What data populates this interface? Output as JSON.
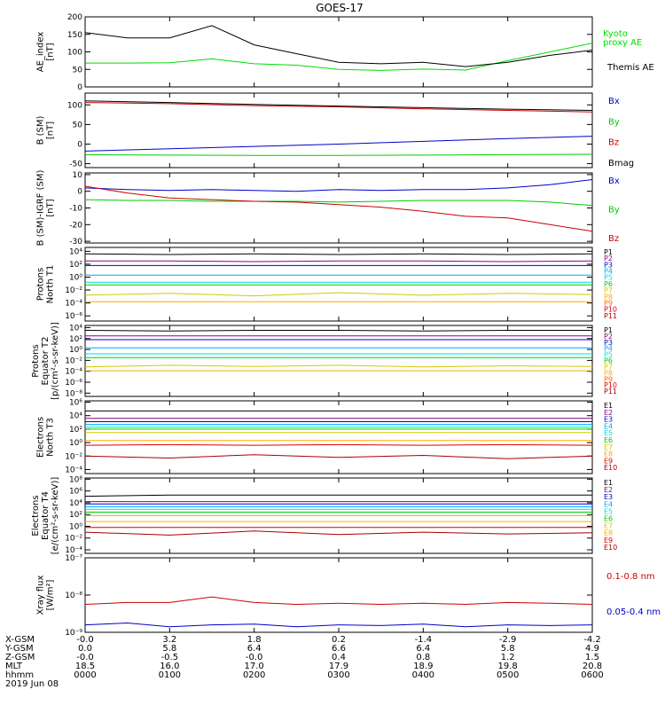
{
  "figure": {
    "title": "GOES-17",
    "date_label": "2019 Jun 08"
  },
  "chart_data": [
    {
      "id": "ae",
      "type": "line",
      "ylabel": [
        "AE_index",
        "[nT]"
      ],
      "yscale": "linear",
      "ylim": [
        0,
        200
      ],
      "yticks": [
        0,
        50,
        100,
        150,
        200
      ],
      "ytick_labels": [
        "0",
        "50",
        "100",
        "150",
        "200"
      ],
      "x": [
        0,
        30,
        60,
        90,
        120,
        150,
        180,
        210,
        240,
        270,
        300,
        330,
        360
      ],
      "series": [
        {
          "name": "Kyoto proxy AE",
          "legend_lines": [
            "Kyoto",
            "proxy AE"
          ],
          "color": "#00dd00",
          "values": [
            68,
            68,
            69,
            80,
            66,
            62,
            50,
            47,
            51,
            48,
            75,
            100,
            125
          ]
        },
        {
          "name": "Themis AE",
          "legend_lines": [
            "Themis AE"
          ],
          "color": "#000000",
          "values": [
            155,
            140,
            140,
            175,
            120,
            95,
            70,
            66,
            70,
            58,
            70,
            90,
            105
          ]
        }
      ]
    },
    {
      "id": "bsm",
      "type": "line",
      "ylabel": [
        "B (SM)",
        "[nT]"
      ],
      "yscale": "linear",
      "ylim": [
        -60,
        130
      ],
      "yticks": [
        -50,
        0,
        50,
        100
      ],
      "ytick_labels": [
        "-50",
        "0",
        "50",
        "100"
      ],
      "x": [
        0,
        60,
        120,
        180,
        240,
        300,
        360
      ],
      "series": [
        {
          "name": "Bx",
          "color": "#0000cc",
          "values": [
            -18,
            -12,
            -6,
            0,
            7,
            14,
            20
          ]
        },
        {
          "name": "By",
          "color": "#00cc00",
          "values": [
            -27,
            -28,
            -29,
            -29,
            -28,
            -27,
            -26
          ]
        },
        {
          "name": "Bz",
          "color": "#cc0000",
          "values": [
            106,
            103,
            98,
            95,
            90,
            86,
            82
          ]
        },
        {
          "name": "Bmag",
          "color": "#000000",
          "values": [
            110,
            106,
            101,
            97,
            93,
            89,
            86
          ]
        }
      ]
    },
    {
      "id": "bsmigrf",
      "type": "line",
      "ylabel": [
        "B (SM)-IGRF (SM)",
        "[nT]"
      ],
      "yscale": "linear",
      "ylim": [
        -31,
        11
      ],
      "yticks": [
        -30,
        -20,
        -10,
        0,
        10
      ],
      "ytick_labels": [
        "-30",
        "-20",
        "-10",
        "0",
        "10"
      ],
      "x": [
        0,
        30,
        60,
        90,
        120,
        150,
        180,
        210,
        240,
        270,
        300,
        330,
        360
      ],
      "series": [
        {
          "name": "Bx",
          "color": "#0000cc",
          "values": [
            2,
            1,
            0.5,
            1,
            0.5,
            0,
            1,
            0.5,
            1,
            1,
            2,
            4,
            7
          ]
        },
        {
          "name": "By",
          "color": "#00cc00",
          "values": [
            -5,
            -5.5,
            -5.5,
            -6,
            -6,
            -6,
            -6.5,
            -6,
            -5.5,
            -5.5,
            -5.5,
            -6.5,
            -8.5
          ]
        },
        {
          "name": "Bz",
          "color": "#cc0000",
          "values": [
            3,
            -1,
            -4,
            -5,
            -6,
            -6.5,
            -8,
            -9.5,
            -12,
            -15,
            -16,
            -20,
            -24
          ]
        }
      ]
    },
    {
      "id": "protons_north",
      "type": "line",
      "ylabel": [
        "Protons",
        "North T1"
      ],
      "yscale": "log",
      "ylim_exp": [
        -6.8,
        4.6
      ],
      "ytick_exps": [
        -6,
        -4,
        -2,
        0,
        2,
        4
      ],
      "ytick_labels": [
        "10⁻⁶",
        "10⁻⁴",
        "10⁻²",
        "10⁰",
        "10²",
        "10⁴"
      ],
      "x": [
        0,
        60,
        120,
        180,
        240,
        300,
        360
      ],
      "series": [
        {
          "name": "P1",
          "color": "#000000",
          "values_exp": [
            3.6,
            3.5,
            3.6,
            3.5,
            3.6,
            3.5,
            3.6
          ]
        },
        {
          "name": "P2",
          "color": "#880088",
          "values_exp": [
            2.5,
            2.5,
            2.4,
            2.5,
            2.5,
            2.4,
            2.5
          ]
        },
        {
          "name": "P3",
          "color": "#0000cc",
          "values_exp": [
            1.8,
            1.8,
            1.8,
            1.8,
            1.8,
            1.8,
            1.8
          ]
        },
        {
          "name": "P4",
          "color": "#00aaee",
          "values_exp": [
            0.3,
            0.3,
            0.3,
            0.3,
            0.3,
            0.3,
            0.3
          ]
        },
        {
          "name": "P5",
          "color": "#00dddd",
          "values_exp": [
            -0.8,
            -0.8,
            -0.8,
            -0.8,
            -0.8,
            -0.8,
            -0.8
          ]
        },
        {
          "name": "P6",
          "color": "#00cc00",
          "values_exp": [
            -1.2,
            -1.2,
            -1.2,
            -1.2,
            -1.2,
            -1.2,
            -1.2
          ]
        },
        {
          "name": "P7",
          "color": "#cccc00",
          "values_exp": [
            -2.8,
            -2.5,
            -2.9,
            -2.4,
            -2.8,
            -2.5,
            -2.7
          ]
        },
        {
          "name": "P8",
          "color": "#ffaa00",
          "values_exp": [
            -3.8,
            -3.8,
            -3.8,
            -3.8,
            -3.8,
            -3.8,
            -3.8
          ]
        },
        {
          "name": "P9",
          "color": "#ff6600",
          "values_exp": [
            null,
            null,
            null,
            null,
            null,
            null,
            null
          ]
        },
        {
          "name": "P10",
          "color": "#dd0000",
          "values_exp": [
            null,
            null,
            null,
            null,
            null,
            null,
            null
          ]
        },
        {
          "name": "P11",
          "color": "#aa0000",
          "values_exp": [
            null,
            null,
            null,
            null,
            null,
            null,
            null
          ]
        }
      ]
    },
    {
      "id": "protons_equator",
      "type": "line",
      "ylabel": [
        "Protons",
        "Equator T2",
        "[p/(cm²-s-sr-keV)]"
      ],
      "yscale": "log",
      "ylim_exp": [
        -8.6,
        4.4
      ],
      "ytick_exps": [
        -8,
        -6,
        -4,
        -2,
        0,
        2,
        4
      ],
      "ytick_labels": [
        "10⁻⁸",
        "10⁻⁶",
        "10⁻⁴",
        "10⁻²",
        "10⁰",
        "10²",
        "10⁴"
      ],
      "x": [
        0,
        60,
        120,
        180,
        240,
        300,
        360
      ],
      "series": [
        {
          "name": "P1",
          "color": "#000000",
          "values_exp": [
            3.5,
            3.4,
            3.5,
            3.5,
            3.4,
            3.5,
            3.5
          ]
        },
        {
          "name": "P2",
          "color": "#880088",
          "values_exp": [
            2.5,
            2.5,
            2.5,
            2.5,
            2.5,
            2.5,
            2.5
          ]
        },
        {
          "name": "P3",
          "color": "#0000cc",
          "values_exp": [
            1.8,
            1.8,
            1.8,
            1.8,
            1.8,
            1.8,
            1.8
          ]
        },
        {
          "name": "P4",
          "color": "#00aaee",
          "values_exp": [
            0.3,
            0.3,
            0.3,
            0.3,
            0.3,
            0.3,
            0.3
          ]
        },
        {
          "name": "P5",
          "color": "#00dddd",
          "values_exp": [
            -0.8,
            -0.8,
            -0.8,
            -0.8,
            -0.8,
            -0.8,
            -0.8
          ]
        },
        {
          "name": "P6",
          "color": "#00cc00",
          "values_exp": [
            -1.5,
            -1.5,
            -1.5,
            -1.5,
            -1.5,
            -1.5,
            -1.5
          ]
        },
        {
          "name": "P7",
          "color": "#cccc00",
          "values_exp": [
            -3.2,
            -2.9,
            -3.1,
            -2.9,
            -3.2,
            -3.0,
            -3.1
          ]
        },
        {
          "name": "P8",
          "color": "#ffaa00",
          "values_exp": [
            -3.9,
            -3.9,
            -3.9,
            -3.9,
            -3.9,
            -3.9,
            -3.9
          ]
        },
        {
          "name": "P9",
          "color": "#ff6600",
          "values_exp": [
            null,
            null,
            null,
            null,
            null,
            null,
            null
          ]
        },
        {
          "name": "P10",
          "color": "#dd0000",
          "values_exp": [
            null,
            null,
            null,
            null,
            null,
            null,
            null
          ]
        },
        {
          "name": "P11",
          "color": "#aa0000",
          "values_exp": [
            null,
            null,
            null,
            null,
            null,
            null,
            null
          ]
        }
      ]
    },
    {
      "id": "electrons_north",
      "type": "line",
      "ylabel": [
        "Electrons",
        "North T3"
      ],
      "yscale": "log",
      "ylim_exp": [
        -4.6,
        6.2
      ],
      "ytick_exps": [
        -4,
        -2,
        0,
        2,
        4,
        6
      ],
      "ytick_labels": [
        "10⁻⁴",
        "10⁻²",
        "10⁰",
        "10²",
        "10⁴",
        "10⁶"
      ],
      "x": [
        0,
        60,
        120,
        180,
        240,
        300,
        360
      ],
      "series": [
        {
          "name": "E1",
          "color": "#000000",
          "values_exp": [
            4.7,
            4.7,
            4.7,
            4.7,
            4.7,
            4.7,
            4.7
          ]
        },
        {
          "name": "E2",
          "color": "#880088",
          "values_exp": [
            3.6,
            3.6,
            3.6,
            3.6,
            3.6,
            3.6,
            3.6
          ]
        },
        {
          "name": "E3",
          "color": "#0000cc",
          "values_exp": [
            3.1,
            3.1,
            3.1,
            3.1,
            3.1,
            3.1,
            3.1
          ]
        },
        {
          "name": "E4",
          "color": "#00aaee",
          "values_exp": [
            2.7,
            2.7,
            2.7,
            2.7,
            2.7,
            2.7,
            2.7
          ]
        },
        {
          "name": "E5",
          "color": "#00dddd",
          "values_exp": [
            2.3,
            2.3,
            2.3,
            2.3,
            2.3,
            2.3,
            2.3
          ]
        },
        {
          "name": "E6",
          "color": "#00cc00",
          "values_exp": [
            2.0,
            2.0,
            2.0,
            2.0,
            2.0,
            2.0,
            2.0
          ]
        },
        {
          "name": "E7",
          "color": "#cccc00",
          "values_exp": [
            1.5,
            1.5,
            1.5,
            1.5,
            1.5,
            1.5,
            1.5
          ]
        },
        {
          "name": "E8",
          "color": "#ffaa00",
          "values_exp": [
            0.3,
            0.3,
            0.3,
            0.3,
            0.3,
            0.3,
            0.3
          ]
        },
        {
          "name": "E9",
          "color": "#dd0000",
          "values_exp": [
            -0.4,
            -0.3,
            -0.4,
            -0.3,
            -0.4,
            -0.3,
            -0.4
          ]
        },
        {
          "name": "E10",
          "color": "#aa0000",
          "values_exp": [
            -2.0,
            -2.3,
            -1.8,
            -2.2,
            -1.9,
            -2.4,
            -2.0
          ]
        }
      ]
    },
    {
      "id": "electrons_equator",
      "type": "line",
      "ylabel": [
        "Electrons",
        "Equator T4",
        "[e/(cm²-s-sr-keV)]"
      ],
      "yscale": "log",
      "ylim_exp": [
        -4.6,
        8.2
      ],
      "ytick_exps": [
        -4,
        -2,
        0,
        2,
        4,
        6,
        8
      ],
      "ytick_labels": [
        "10⁻⁴",
        "10⁻²",
        "10⁰",
        "10²",
        "10⁴",
        "10⁶",
        "10⁸"
      ],
      "x": [
        0,
        60,
        120,
        180,
        240,
        300,
        360
      ],
      "series": [
        {
          "name": "E1",
          "color": "#000000",
          "values_exp": [
            5.1,
            5.3,
            5.3,
            5.3,
            5.3,
            5.3,
            5.3
          ]
        },
        {
          "name": "E2",
          "color": "#880088",
          "values_exp": [
            4.2,
            4.2,
            4.2,
            4.2,
            4.2,
            4.2,
            4.2
          ]
        },
        {
          "name": "E3",
          "color": "#0000cc",
          "values_exp": [
            3.8,
            3.8,
            3.8,
            3.8,
            3.8,
            3.8,
            3.8
          ]
        },
        {
          "name": "E4",
          "color": "#00aaee",
          "values_exp": [
            3.3,
            3.3,
            3.3,
            3.3,
            3.3,
            3.3,
            3.3
          ]
        },
        {
          "name": "E5",
          "color": "#00dddd",
          "values_exp": [
            2.9,
            2.9,
            2.9,
            2.9,
            2.9,
            2.9,
            2.9
          ]
        },
        {
          "name": "E6",
          "color": "#00cc00",
          "values_exp": [
            2.4,
            2.4,
            2.4,
            2.4,
            2.4,
            2.4,
            2.4
          ]
        },
        {
          "name": "E7",
          "color": "#cccc00",
          "values_exp": [
            1.8,
            1.8,
            1.8,
            1.8,
            1.8,
            1.8,
            1.8
          ]
        },
        {
          "name": "E8",
          "color": "#ffaa00",
          "values_exp": [
            0.8,
            0.8,
            0.8,
            0.8,
            0.8,
            0.8,
            0.8
          ]
        },
        {
          "name": "E9",
          "color": "#dd0000",
          "values_exp": [
            -0.2,
            -0.2,
            -0.2,
            -0.2,
            -0.2,
            -0.2,
            -0.2
          ]
        },
        {
          "name": "E10",
          "color": "#aa0000",
          "values_exp": [
            -1.0,
            -1.5,
            -0.8,
            -1.4,
            -1.0,
            -1.3,
            -1.1
          ]
        }
      ]
    },
    {
      "id": "xray",
      "type": "line",
      "ylabel": [
        "Xray flux",
        "[W/m²]"
      ],
      "yscale": "log",
      "ylim_exp": [
        -9,
        -7
      ],
      "ytick_exps": [
        -9,
        -8,
        -7
      ],
      "ytick_labels": [
        "10⁻⁹",
        "10⁻⁸",
        "10⁻⁷"
      ],
      "x": [
        0,
        30,
        60,
        90,
        120,
        150,
        180,
        210,
        240,
        270,
        300,
        330,
        360
      ],
      "series": [
        {
          "name": "0.1-0.8 nm",
          "color": "#cc0000",
          "values_exp": [
            -8.25,
            -8.2,
            -8.2,
            -8.05,
            -8.2,
            -8.25,
            -8.22,
            -8.25,
            -8.22,
            -8.25,
            -8.2,
            -8.22,
            -8.25
          ]
        },
        {
          "name": "0.05-0.4 nm",
          "color": "#0000cc",
          "values_exp": [
            -8.8,
            -8.75,
            -8.85,
            -8.8,
            -8.78,
            -8.85,
            -8.8,
            -8.82,
            -8.78,
            -8.85,
            -8.8,
            -8.82,
            -8.8
          ]
        }
      ]
    }
  ],
  "x_axis": {
    "xlim": [
      0,
      360
    ],
    "tick_minutes": [
      0,
      60,
      120,
      180,
      240,
      300,
      360
    ],
    "row_labels": [
      "X-GSM",
      "Y-GSM",
      "Z-GSM",
      "MLT",
      "hhmm"
    ],
    "rows": [
      [
        "-0.0",
        "3.2",
        "1.8",
        "0.2",
        "-1.4",
        "-2.9",
        "-4.2"
      ],
      [
        "0.0",
        "5.8",
        "6.4",
        "6.6",
        "6.4",
        "5.8",
        "4.9"
      ],
      [
        "-0.0",
        "-0.5",
        "-0.0",
        "0.4",
        "0.8",
        "1.2",
        "1.5"
      ],
      [
        "18.5",
        "16.0",
        "17.0",
        "17.9",
        "18.9",
        "19.8",
        "20.8"
      ],
      [
        "0000",
        "0100",
        "0200",
        "0300",
        "0400",
        "0500",
        "0600"
      ]
    ]
  }
}
